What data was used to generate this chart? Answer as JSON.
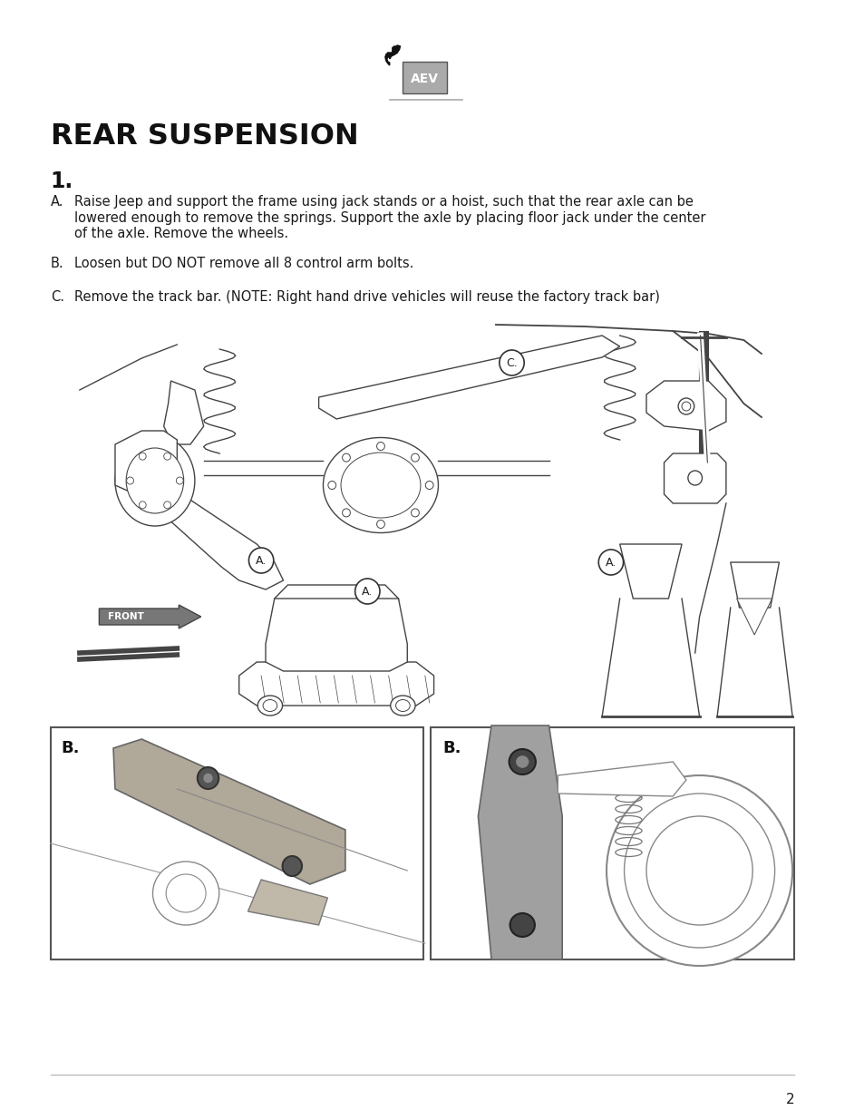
{
  "page_background": "#ffffff",
  "title": "REAR SUSPENSION",
  "step_number": "1.",
  "item_A": "Raise Jeep and support the frame using jack stands or a hoist, such that the rear axle can be\nlowered enough to remove the springs. Support the axle by placing floor jack under the center\nof the axle. Remove the wheels.",
  "item_B": "Loosen but DO NOT remove all 8 control arm bolts.",
  "item_C": "Remove the track bar. (NOTE: Right hand drive vehicles will reuse the factory track bar)",
  "page_number": "2",
  "text_color": "#1a1a1a",
  "title_color": "#111111",
  "diag_color": "#444444",
  "diag_lw": 1.0,
  "photo_border": "#444444",
  "sep_color": "#bbbbbb",
  "logo_line_color": "#aaaaaa",
  "front_arrow_fill": "#888888",
  "photo_left_bg": "#d0c8b8",
  "photo_right_bg": "#c8c8c8"
}
